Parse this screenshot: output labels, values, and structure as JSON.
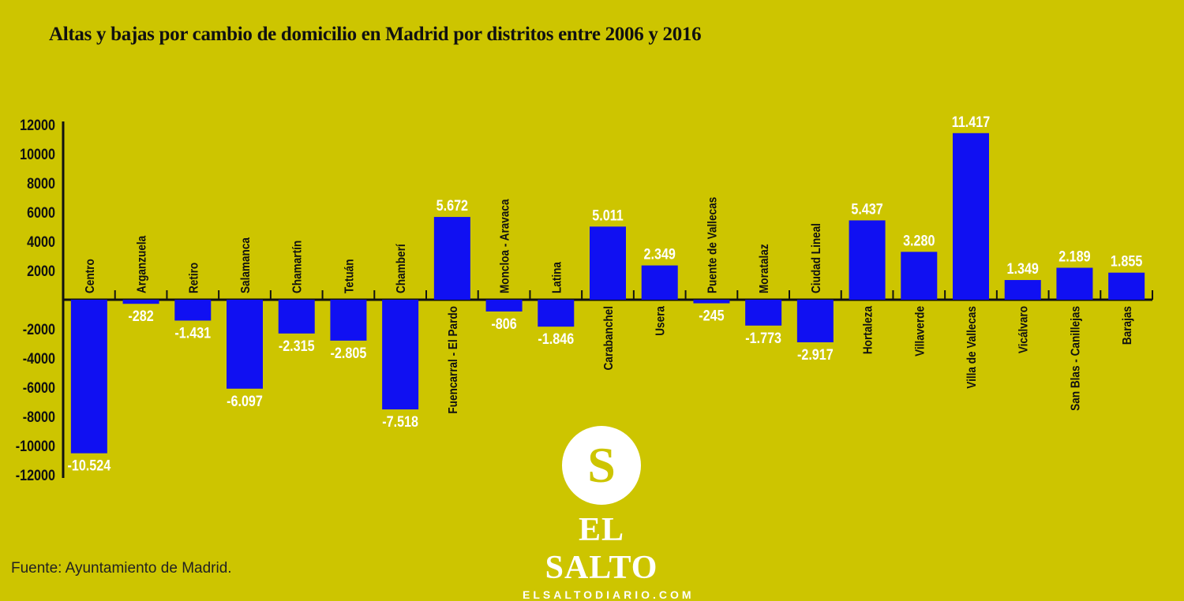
{
  "chart_data": {
    "type": "bar",
    "title": "Altas y bajas por cambio de domicilio en Madrid por distritos entre 2006 y 2016",
    "xlabel": "",
    "ylabel": "",
    "ylim": [
      -12000,
      12000
    ],
    "yticks": [
      "12000",
      "10000",
      "8000",
      "6000",
      "4000",
      "2000",
      "-2000",
      "-4000",
      "-6000",
      "-8000",
      "-10000",
      "-12000"
    ],
    "ytick_values": [
      12000,
      10000,
      8000,
      6000,
      4000,
      2000,
      -2000,
      -4000,
      -6000,
      -8000,
      -10000,
      -12000
    ],
    "categories": [
      "Centro",
      "Arganzuela",
      "Retiro",
      "Salamanca",
      "Chamartín",
      "Tetuán",
      "Chamberí",
      "Fuencarral - El Pardo",
      "Moncloa - Aravaca",
      "Latina",
      "Carabanchel",
      "Usera",
      "Puente de Vallecas",
      "Moratalaz",
      "Ciudad Lineal",
      "Hortaleza",
      "Villaverde",
      "Villa de Vallecas",
      "Vicálvaro",
      "San Blas - Canillejas",
      "Barajas"
    ],
    "values": [
      -10524,
      -282,
      -1431,
      -6097,
      -2315,
      -2805,
      -7518,
      5672,
      -806,
      -1846,
      5011,
      2349,
      -245,
      -1773,
      -2917,
      5437,
      3280,
      11417,
      1349,
      2189,
      1855
    ],
    "value_labels": [
      "-10.524",
      "-282",
      "-1.431",
      "-6.097",
      "-2.315",
      "-2.805",
      "-7.518",
      "5.672",
      "-806",
      "-1.846",
      "5.011",
      "2.349",
      "-245",
      "-1.773",
      "-2.917",
      "5.437",
      "3.280",
      "11.417",
      "1.349",
      "2.189",
      "1.855"
    ],
    "grid": false,
    "colors": {
      "bar": "#1010f2",
      "background": "#cdc500"
    }
  },
  "source": "Fuente: Ayuntamiento de Madrid.",
  "logo": {
    "letter": "S",
    "name": "EL SALTO",
    "url": "ELSALTODIARIO.COM"
  }
}
